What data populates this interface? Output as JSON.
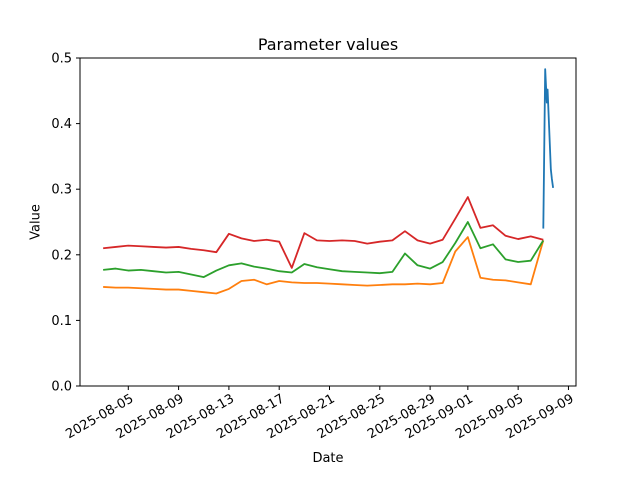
{
  "chart_data": {
    "type": "line",
    "title": "Parameter values",
    "xlabel": "Date",
    "ylabel": "Value",
    "grid": false,
    "legend": "none",
    "ylim": [
      0.0,
      0.5
    ],
    "yticks": [
      0.0,
      0.1,
      0.2,
      0.3,
      0.4,
      0.5
    ],
    "ytick_labels": [
      "0.0",
      "0.1",
      "0.2",
      "0.3",
      "0.4",
      "0.5"
    ],
    "x_epoch": "2025-08-01",
    "xlim_days": [
      0.16,
      39.6
    ],
    "xticks_days": [
      4,
      8,
      12,
      16,
      20,
      24,
      28,
      31,
      35,
      39
    ],
    "xtick_labels": [
      "2025-08-05",
      "2025-08-09",
      "2025-08-13",
      "2025-08-17",
      "2025-08-21",
      "2025-08-25",
      "2025-08-29",
      "2025-09-01",
      "2025-09-05",
      "2025-09-09"
    ],
    "series": [
      {
        "name": "blue",
        "color": "#1f77b4",
        "x_days": [
          37.0,
          37.15,
          37.28,
          37.34,
          37.6,
          37.68,
          37.78
        ],
        "values": [
          0.24,
          0.483,
          0.432,
          0.452,
          0.33,
          0.316,
          0.302
        ]
      },
      {
        "name": "orange",
        "color": "#ff7f0e",
        "x_days": [
          2,
          3,
          4,
          5,
          6,
          7,
          8,
          9,
          10,
          11,
          12,
          13,
          14,
          15,
          16,
          17,
          18,
          19,
          20,
          21,
          22,
          23,
          24,
          25,
          26,
          27,
          28,
          29,
          30,
          31,
          32,
          33,
          34,
          35,
          36,
          37
        ],
        "values": [
          0.151,
          0.15,
          0.15,
          0.149,
          0.148,
          0.147,
          0.147,
          0.145,
          0.143,
          0.141,
          0.148,
          0.16,
          0.162,
          0.155,
          0.16,
          0.158,
          0.157,
          0.157,
          0.156,
          0.155,
          0.154,
          0.153,
          0.154,
          0.155,
          0.155,
          0.156,
          0.155,
          0.157,
          0.205,
          0.227,
          0.165,
          0.162,
          0.161,
          0.158,
          0.155,
          0.222
        ]
      },
      {
        "name": "green",
        "color": "#2ca02c",
        "x_days": [
          2,
          3,
          4,
          5,
          6,
          7,
          8,
          9,
          10,
          11,
          12,
          13,
          14,
          15,
          16,
          17,
          18,
          19,
          20,
          21,
          22,
          23,
          24,
          25,
          26,
          27,
          28,
          29,
          30,
          31,
          32,
          33,
          34,
          35,
          36,
          37
        ],
        "values": [
          0.177,
          0.179,
          0.176,
          0.177,
          0.175,
          0.173,
          0.174,
          0.17,
          0.166,
          0.176,
          0.184,
          0.187,
          0.182,
          0.179,
          0.175,
          0.173,
          0.186,
          0.181,
          0.178,
          0.175,
          0.174,
          0.173,
          0.172,
          0.174,
          0.202,
          0.184,
          0.179,
          0.189,
          0.218,
          0.25,
          0.21,
          0.216,
          0.193,
          0.189,
          0.191,
          0.222
        ]
      },
      {
        "name": "red",
        "color": "#d62728",
        "x_days": [
          2,
          3,
          4,
          5,
          6,
          7,
          8,
          9,
          10,
          11,
          12,
          13,
          14,
          15,
          16,
          17,
          18,
          19,
          20,
          21,
          22,
          23,
          24,
          25,
          26,
          27,
          28,
          29,
          30,
          31,
          32,
          33,
          34,
          35,
          36,
          37
        ],
        "values": [
          0.21,
          0.212,
          0.214,
          0.213,
          0.212,
          0.211,
          0.212,
          0.209,
          0.207,
          0.204,
          0.232,
          0.225,
          0.221,
          0.223,
          0.22,
          0.18,
          0.233,
          0.222,
          0.221,
          0.222,
          0.221,
          0.217,
          0.22,
          0.222,
          0.236,
          0.222,
          0.217,
          0.223,
          0.255,
          0.288,
          0.241,
          0.245,
          0.229,
          0.224,
          0.228,
          0.223
        ]
      }
    ]
  }
}
